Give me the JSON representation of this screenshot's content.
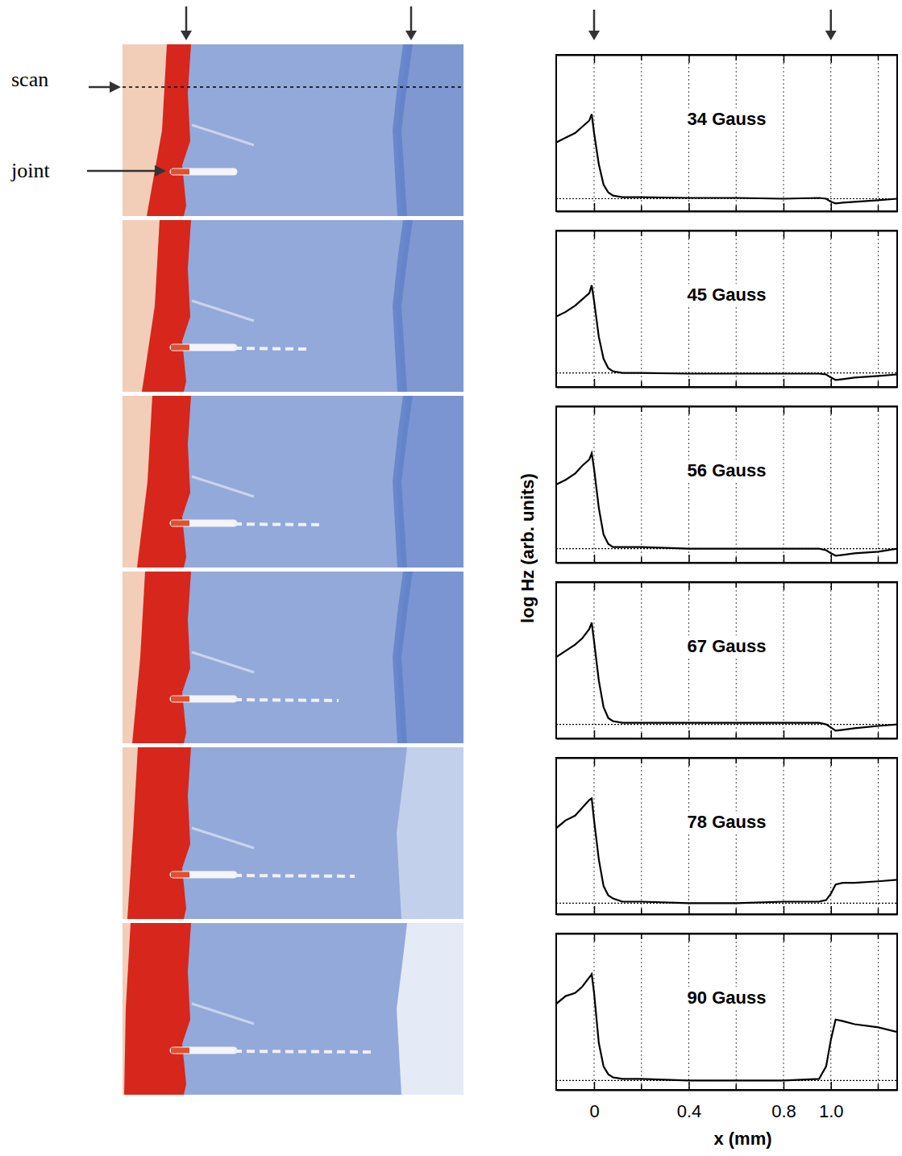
{
  "figure": {
    "xlabel": "x (mm)",
    "ylabel": "log Hz (arb. units)",
    "annotations": [
      "scan",
      "joint"
    ]
  },
  "chart_data": [
    {
      "type": "line",
      "title": "34 Gauss",
      "x": [
        -0.16,
        -0.12,
        -0.08,
        -0.05,
        -0.02,
        -0.01,
        0.0,
        0.02,
        0.04,
        0.06,
        0.08,
        0.12,
        0.2,
        0.4,
        0.6,
        0.8,
        0.95,
        0.98,
        1.0,
        1.02,
        1.05,
        1.1,
        1.2,
        1.28
      ],
      "series": [
        {
          "color": "#000000",
          "values": [
            0.44,
            0.47,
            0.5,
            0.54,
            0.58,
            0.62,
            0.5,
            0.3,
            0.17,
            0.12,
            0.1,
            0.09,
            0.09,
            0.085,
            0.085,
            0.08,
            0.085,
            0.08,
            0.06,
            0.05,
            0.055,
            0.06,
            0.07,
            0.08
          ]
        }
      ],
      "baseline": 0.08,
      "xlim": [
        -0.16,
        1.28
      ],
      "ylim": [
        0,
        1
      ],
      "xticks": [
        0,
        0.4,
        0.8,
        {
          "value": 1,
          "label": "1.0"
        }
      ],
      "xminor": [
        0.2,
        0.6,
        1.2
      ],
      "grid": true,
      "tick_labels": false
    },
    {
      "type": "line",
      "title": "45 Gauss",
      "x": [
        -0.16,
        -0.12,
        -0.08,
        -0.05,
        -0.02,
        -0.01,
        0.0,
        0.02,
        0.04,
        0.06,
        0.08,
        0.12,
        0.2,
        0.4,
        0.6,
        0.8,
        0.95,
        0.98,
        1.0,
        1.02,
        1.05,
        1.1,
        1.2,
        1.28
      ],
      "series": [
        {
          "color": "#000000",
          "values": [
            0.45,
            0.48,
            0.52,
            0.56,
            0.6,
            0.65,
            0.55,
            0.32,
            0.18,
            0.12,
            0.1,
            0.09,
            0.09,
            0.085,
            0.085,
            0.085,
            0.085,
            0.08,
            0.06,
            0.045,
            0.05,
            0.06,
            0.07,
            0.08
          ]
        }
      ],
      "baseline": 0.09,
      "xlim": [
        -0.16,
        1.28
      ],
      "ylim": [
        0,
        1
      ],
      "xticks": [
        0,
        0.4,
        0.8,
        {
          "value": 1,
          "label": "1.0"
        }
      ],
      "xminor": [
        0.2,
        0.6,
        1.2
      ],
      "grid": true,
      "tick_labels": false
    },
    {
      "type": "line",
      "title": "56 Gauss",
      "x": [
        -0.16,
        -0.12,
        -0.08,
        -0.05,
        -0.02,
        -0.01,
        0.0,
        0.02,
        0.04,
        0.06,
        0.08,
        0.12,
        0.2,
        0.4,
        0.6,
        0.8,
        0.95,
        0.98,
        1.0,
        1.02,
        1.05,
        1.1,
        1.2,
        1.28
      ],
      "series": [
        {
          "color": "#000000",
          "values": [
            0.5,
            0.53,
            0.57,
            0.62,
            0.66,
            0.7,
            0.6,
            0.35,
            0.18,
            0.12,
            0.1,
            0.1,
            0.1,
            0.09,
            0.09,
            0.09,
            0.09,
            0.08,
            0.06,
            0.045,
            0.05,
            0.06,
            0.07,
            0.09
          ]
        }
      ],
      "baseline": 0.09,
      "xlim": [
        -0.16,
        1.28
      ],
      "ylim": [
        0,
        1
      ],
      "xticks": [
        0,
        0.4,
        0.8,
        {
          "value": 1,
          "label": "1.0"
        }
      ],
      "xminor": [
        0.2,
        0.6,
        1.2
      ],
      "grid": true,
      "tick_labels": false
    },
    {
      "type": "line",
      "title": "67 Gauss",
      "x": [
        -0.16,
        -0.12,
        -0.08,
        -0.05,
        -0.02,
        -0.01,
        0.0,
        0.02,
        0.04,
        0.06,
        0.08,
        0.12,
        0.2,
        0.4,
        0.6,
        0.8,
        0.95,
        0.98,
        1.0,
        1.02,
        1.05,
        1.1,
        1.2,
        1.28
      ],
      "series": [
        {
          "color": "#000000",
          "values": [
            0.52,
            0.56,
            0.6,
            0.64,
            0.7,
            0.74,
            0.62,
            0.37,
            0.2,
            0.13,
            0.11,
            0.1,
            0.1,
            0.1,
            0.1,
            0.1,
            0.1,
            0.09,
            0.07,
            0.05,
            0.055,
            0.065,
            0.08,
            0.09
          ]
        }
      ],
      "baseline": 0.09,
      "xlim": [
        -0.16,
        1.28
      ],
      "ylim": [
        0,
        1
      ],
      "xticks": [
        0,
        0.4,
        0.8,
        {
          "value": 1,
          "label": "1.0"
        }
      ],
      "xminor": [
        0.2,
        0.6,
        1.2
      ],
      "grid": true,
      "tick_labels": false
    },
    {
      "type": "line",
      "title": "78 Gauss",
      "x": [
        -0.16,
        -0.12,
        -0.08,
        -0.05,
        -0.02,
        -0.01,
        0.0,
        0.02,
        0.04,
        0.06,
        0.08,
        0.12,
        0.2,
        0.4,
        0.6,
        0.8,
        0.95,
        0.98,
        1.0,
        1.02,
        1.05,
        1.1,
        1.2,
        1.28
      ],
      "series": [
        {
          "color": "#000000",
          "values": [
            0.55,
            0.6,
            0.63,
            0.68,
            0.73,
            0.74,
            0.6,
            0.35,
            0.18,
            0.12,
            0.1,
            0.08,
            0.08,
            0.07,
            0.07,
            0.08,
            0.08,
            0.09,
            0.13,
            0.19,
            0.2,
            0.2,
            0.21,
            0.22
          ]
        }
      ],
      "baseline": 0.07,
      "xlim": [
        -0.16,
        1.28
      ],
      "ylim": [
        0,
        1
      ],
      "xticks": [
        0,
        0.4,
        0.8,
        {
          "value": 1,
          "label": "1.0"
        }
      ],
      "xminor": [
        0.2,
        0.6,
        1.2
      ],
      "grid": true,
      "tick_labels": false
    },
    {
      "type": "line",
      "title": "90 Gauss",
      "x": [
        -0.16,
        -0.12,
        -0.08,
        -0.05,
        -0.02,
        -0.01,
        0.0,
        0.02,
        0.04,
        0.06,
        0.08,
        0.12,
        0.2,
        0.4,
        0.6,
        0.8,
        0.95,
        0.98,
        1.0,
        1.02,
        1.05,
        1.1,
        1.2,
        1.28
      ],
      "series": [
        {
          "color": "#000000",
          "values": [
            0.55,
            0.6,
            0.62,
            0.66,
            0.72,
            0.74,
            0.62,
            0.3,
            0.15,
            0.1,
            0.08,
            0.07,
            0.07,
            0.06,
            0.06,
            0.06,
            0.07,
            0.15,
            0.32,
            0.45,
            0.44,
            0.42,
            0.4,
            0.37
          ]
        }
      ],
      "baseline": 0.06,
      "xlim": [
        -0.16,
        1.28
      ],
      "ylim": [
        0,
        1
      ],
      "xticks": [
        0,
        0.4,
        0.8,
        {
          "value": 1,
          "label": "1.0"
        }
      ],
      "xminor": [
        0.2,
        0.6,
        1.2
      ],
      "grid": true,
      "tick_labels": "x"
    }
  ]
}
